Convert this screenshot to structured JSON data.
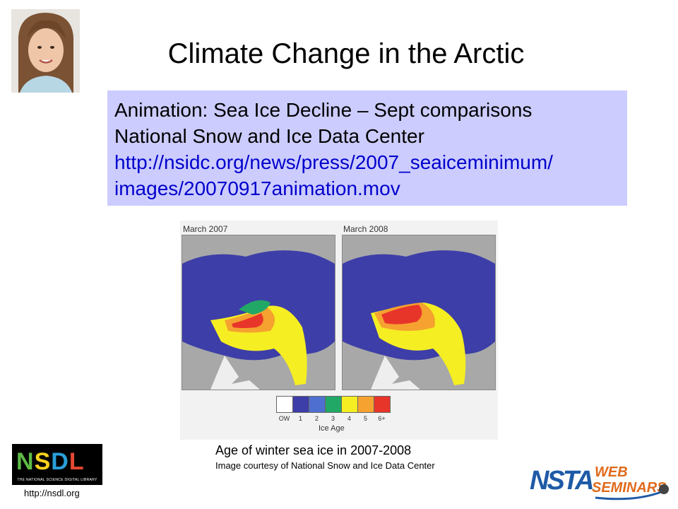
{
  "slide": {
    "title": "Climate Change in the Arctic",
    "info_box": {
      "line1": "Animation: Sea Ice Decline – Sept comparisons",
      "line2": "National Snow and Ice Data Center",
      "link_line1": "http://nsidc.org/news/press/2007_seaiceminimum/",
      "link_line2": "images/20070917animation.mov"
    },
    "figure": {
      "panels": [
        {
          "label": "March 2007"
        },
        {
          "label": "March 2008"
        }
      ],
      "legend": {
        "title": "Ice Age",
        "ticks": [
          "OW",
          "1",
          "2",
          "3",
          "4",
          "5",
          "6+"
        ],
        "colors": [
          "#ffffff",
          "#3d3ea8",
          "#4f6fd0",
          "#22a866",
          "#f5ee22",
          "#f5a230",
          "#e8352a"
        ]
      }
    },
    "caption": {
      "main": "Age of winter sea ice in 2007-2008",
      "sub": "Image courtesy of National Snow and Ice Data Center"
    },
    "nsdl": {
      "letters": [
        "N",
        "S",
        "D",
        "L"
      ],
      "letter_colors": [
        "#5dbb46",
        "#f7d11e",
        "#2a9fd8",
        "#e64832"
      ],
      "tagline": "THE NATIONAL SCIENCE DIGITAL LIBRARY",
      "url": "http://nsdl.org"
    },
    "nsta": {
      "name": "NSTA",
      "web": "WEB",
      "seminars": "SEMINARS"
    }
  }
}
